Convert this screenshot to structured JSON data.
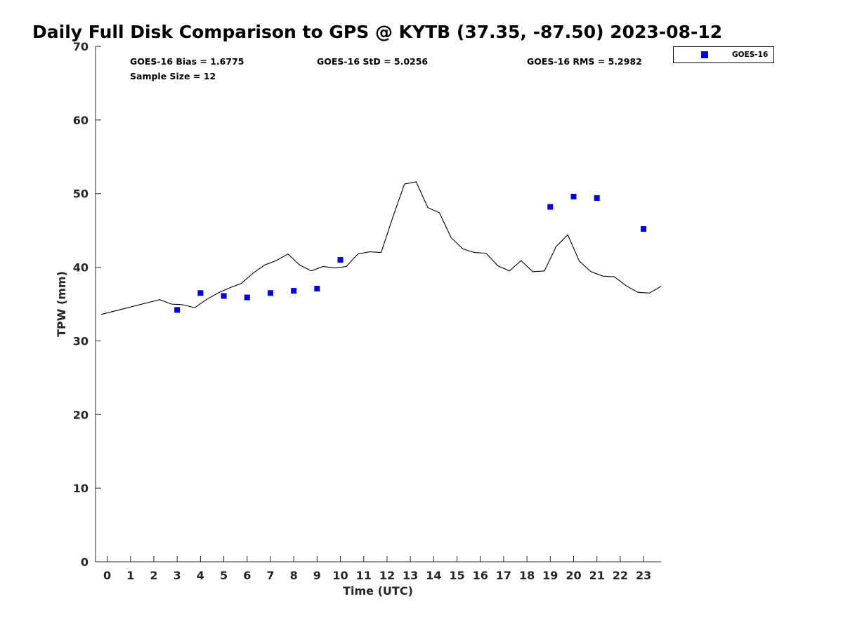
{
  "chart_data": {
    "type": "scatter",
    "title": "Daily Full Disk Comparison to GPS @ KYTB (37.35, -87.50) 2023-08-12",
    "xlabel": "Time (UTC)",
    "ylabel": "TPW (mm)",
    "xlim": [
      -0.5,
      23.75
    ],
    "ylim": [
      0,
      70
    ],
    "x_ticks": [
      0,
      1,
      2,
      3,
      4,
      5,
      6,
      7,
      8,
      9,
      10,
      11,
      12,
      13,
      14,
      15,
      16,
      17,
      18,
      19,
      20,
      21,
      22,
      23
    ],
    "y_ticks": [
      0,
      10,
      20,
      30,
      40,
      50,
      60,
      70
    ],
    "grid": false,
    "legend_position": "top-right, outside plot",
    "stats": {
      "bias": "GOES-16 Bias = 1.6775",
      "std": "GOES-16 StD = 5.0256",
      "rms": "GOES-16 RMS = 5.2982",
      "sample": "Sample Size = 12"
    },
    "gps_line": {
      "color": "#000000",
      "x": [
        -0.25,
        2.25,
        2.75,
        3.25,
        3.75,
        4.25,
        4.75,
        5.25,
        5.75,
        6.25,
        6.75,
        7.25,
        7.75,
        8.25,
        8.75,
        9.25,
        9.75,
        10.25,
        10.75,
        11.25,
        11.75,
        12.25,
        12.75,
        13.25,
        13.75,
        14.25,
        14.75,
        15.25,
        15.75,
        16.25,
        16.75,
        17.25,
        17.75,
        18.25,
        18.75,
        19.25,
        19.75,
        20.25,
        20.75,
        21.25,
        21.75,
        22.25,
        22.75,
        23.25,
        23.75
      ],
      "y": [
        33.6,
        35.6,
        35.0,
        34.9,
        34.5,
        35.6,
        36.5,
        37.2,
        37.8,
        39.2,
        40.3,
        40.9,
        41.8,
        40.3,
        39.5,
        40.1,
        39.9,
        40.1,
        41.8,
        42.1,
        42.0,
        46.8,
        51.3,
        51.6,
        48.1,
        47.4,
        44.0,
        42.5,
        42.0,
        41.9,
        40.2,
        39.5,
        40.9,
        39.4,
        39.5,
        42.8,
        44.4,
        40.8,
        39.4,
        38.8,
        38.7,
        37.5,
        36.6,
        36.5,
        37.4
      ]
    },
    "series": [
      {
        "name": "GOES-16",
        "color": "#0000dd",
        "marker": "square",
        "x": [
          3,
          4,
          5,
          6,
          7,
          8,
          9,
          10,
          19,
          20,
          21,
          23
        ],
        "y": [
          34.2,
          36.5,
          36.1,
          35.9,
          36.5,
          36.8,
          37.1,
          41.0,
          48.2,
          49.6,
          49.4,
          45.2
        ]
      }
    ]
  }
}
